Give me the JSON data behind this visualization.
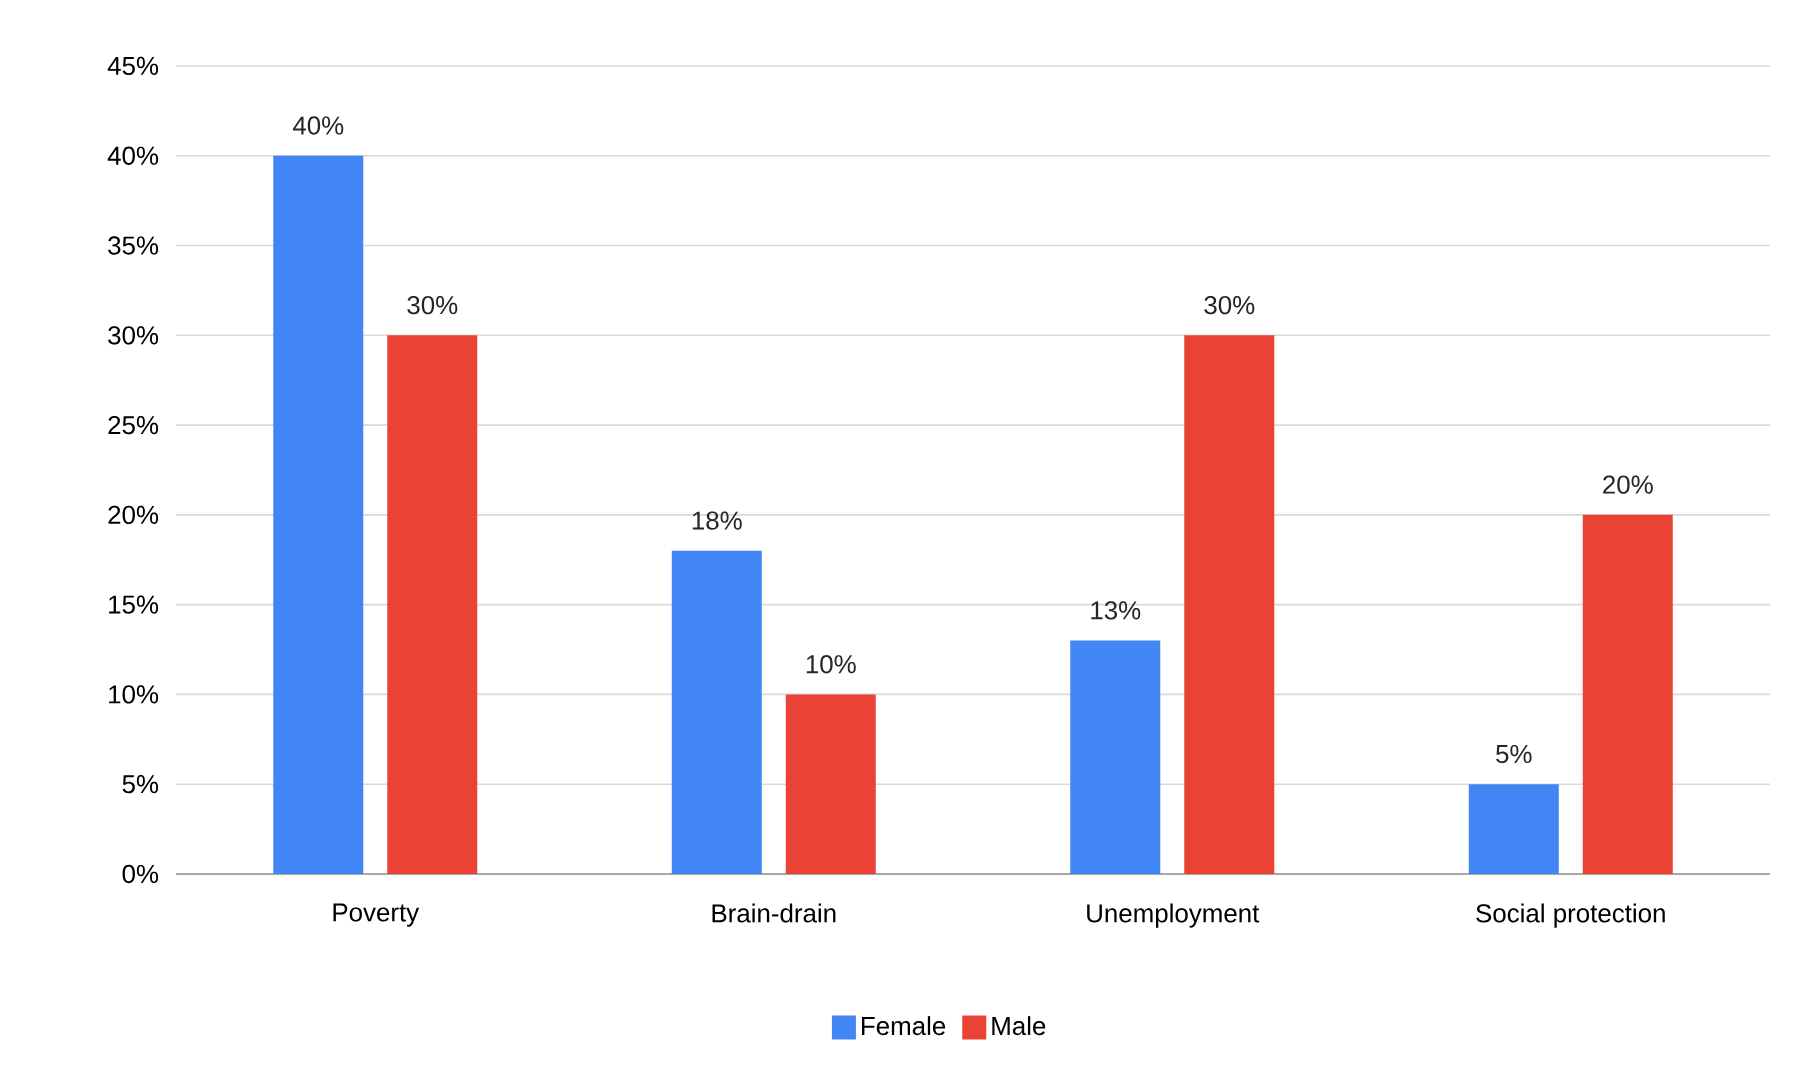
{
  "chart_data": {
    "type": "bar",
    "categories": [
      "Poverty",
      "Brain-drain",
      "Unemployment",
      "Social protection"
    ],
    "series": [
      {
        "name": "Female",
        "color": "#4285f4",
        "values": [
          40,
          18,
          13,
          5
        ],
        "value_labels": [
          "40%",
          "18%",
          "13%",
          "5%"
        ]
      },
      {
        "name": "Male",
        "color": "#ea4335",
        "values": [
          30,
          10,
          30,
          20
        ],
        "value_labels": [
          "30%",
          "10%",
          "30%",
          "20%"
        ]
      }
    ],
    "ylim": [
      0,
      45
    ],
    "yticks": [
      {
        "value": 0,
        "label": "0%"
      },
      {
        "value": 5,
        "label": "5%"
      },
      {
        "value": 10,
        "label": "10%"
      },
      {
        "value": 15,
        "label": "15%"
      },
      {
        "value": 20,
        "label": "20%"
      },
      {
        "value": 25,
        "label": "25%"
      },
      {
        "value": 30,
        "label": "30%"
      },
      {
        "value": 35,
        "label": "35%"
      },
      {
        "value": 40,
        "label": "40%"
      },
      {
        "value": 45,
        "label": "45%"
      }
    ],
    "grid": "y",
    "legend": "bottom"
  }
}
